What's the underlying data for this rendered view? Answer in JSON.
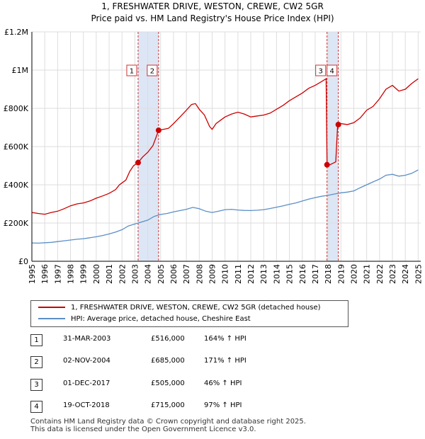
{
  "chart_data": {
    "type": "line",
    "title_line1": "1, FRESHWATER DRIVE, WESTON, CREWE, CW2 5GR",
    "title_line2": "Price paid vs. HM Land Registry's House Price Index (HPI)",
    "xlim": [
      1995,
      2025.2
    ],
    "ylim": [
      0,
      1200000
    ],
    "y_ticks": [
      {
        "value": 0,
        "label": "£0"
      },
      {
        "value": 200000,
        "label": "£200K"
      },
      {
        "value": 400000,
        "label": "£400K"
      },
      {
        "value": 600000,
        "label": "£600K"
      },
      {
        "value": 800000,
        "label": "£800K"
      },
      {
        "value": 1000000,
        "label": "£1M"
      },
      {
        "value": 1200000,
        "label": "£1.2M"
      }
    ],
    "x_ticks": [
      "1995",
      "1996",
      "1997",
      "1998",
      "1999",
      "2000",
      "2001",
      "2002",
      "2003",
      "2004",
      "2005",
      "2006",
      "2007",
      "2008",
      "2009",
      "2010",
      "2011",
      "2012",
      "2013",
      "2014",
      "2015",
      "2016",
      "2017",
      "2018",
      "2019",
      "2020",
      "2021",
      "2022",
      "2023",
      "2024",
      "2025"
    ],
    "series": [
      {
        "name": "1, FRESHWATER DRIVE, WESTON, CREWE, CW2 5GR (detached house)",
        "color": "#cc0000",
        "points": [
          [
            1995,
            255000
          ],
          [
            1995.5,
            250000
          ],
          [
            1996,
            246000
          ],
          [
            1996.5,
            255000
          ],
          [
            1997,
            262000
          ],
          [
            1997.5,
            275000
          ],
          [
            1998,
            290000
          ],
          [
            1998.5,
            300000
          ],
          [
            1999,
            305000
          ],
          [
            1999.5,
            315000
          ],
          [
            2000,
            330000
          ],
          [
            2000.5,
            342000
          ],
          [
            2001,
            355000
          ],
          [
            2001.5,
            375000
          ],
          [
            2001.8,
            400000
          ],
          [
            2002,
            410000
          ],
          [
            2002.3,
            425000
          ],
          [
            2002.6,
            470000
          ],
          [
            2002.9,
            500000
          ],
          [
            2003.25,
            516000
          ],
          [
            2003.6,
            545000
          ],
          [
            2004,
            570000
          ],
          [
            2004.4,
            605000
          ],
          [
            2004.84,
            685000
          ],
          [
            2005.2,
            690000
          ],
          [
            2005.6,
            695000
          ],
          [
            2006,
            720000
          ],
          [
            2006.5,
            755000
          ],
          [
            2007,
            790000
          ],
          [
            2007.4,
            820000
          ],
          [
            2007.7,
            825000
          ],
          [
            2008,
            795000
          ],
          [
            2008.4,
            765000
          ],
          [
            2008.8,
            705000
          ],
          [
            2009,
            690000
          ],
          [
            2009.3,
            720000
          ],
          [
            2009.7,
            740000
          ],
          [
            2010,
            755000
          ],
          [
            2010.5,
            770000
          ],
          [
            2011,
            780000
          ],
          [
            2011.5,
            770000
          ],
          [
            2012,
            755000
          ],
          [
            2012.5,
            760000
          ],
          [
            2013,
            765000
          ],
          [
            2013.5,
            775000
          ],
          [
            2014,
            795000
          ],
          [
            2014.5,
            815000
          ],
          [
            2015,
            840000
          ],
          [
            2015.5,
            860000
          ],
          [
            2016,
            880000
          ],
          [
            2016.5,
            905000
          ],
          [
            2017,
            920000
          ],
          [
            2017.5,
            940000
          ],
          [
            2017.85,
            955000
          ],
          [
            2017.92,
            505000
          ],
          [
            2018.0,
            500000
          ],
          [
            2018.3,
            510000
          ],
          [
            2018.6,
            520000
          ],
          [
            2018.75,
            715000
          ],
          [
            2019,
            720000
          ],
          [
            2019.5,
            715000
          ],
          [
            2020,
            725000
          ],
          [
            2020.5,
            750000
          ],
          [
            2021,
            790000
          ],
          [
            2021.5,
            810000
          ],
          [
            2022,
            850000
          ],
          [
            2022.5,
            900000
          ],
          [
            2023,
            920000
          ],
          [
            2023.5,
            890000
          ],
          [
            2024,
            900000
          ],
          [
            2024.5,
            930000
          ],
          [
            2025,
            955000
          ]
        ]
      },
      {
        "name": "HPI: Average price, detached house, Cheshire East",
        "color": "#5b8fc7",
        "points": [
          [
            1995,
            96000
          ],
          [
            1995.5,
            95000
          ],
          [
            1996,
            97000
          ],
          [
            1996.5,
            99000
          ],
          [
            1997,
            103000
          ],
          [
            1997.5,
            107000
          ],
          [
            1998,
            111000
          ],
          [
            1998.5,
            115000
          ],
          [
            1999,
            118000
          ],
          [
            1999.5,
            123000
          ],
          [
            2000,
            128000
          ],
          [
            2000.5,
            135000
          ],
          [
            2001,
            143000
          ],
          [
            2001.5,
            153000
          ],
          [
            2002,
            165000
          ],
          [
            2002.5,
            185000
          ],
          [
            2003,
            195000
          ],
          [
            2003.5,
            205000
          ],
          [
            2004,
            215000
          ],
          [
            2004.5,
            235000
          ],
          [
            2005,
            245000
          ],
          [
            2005.5,
            250000
          ],
          [
            2006,
            258000
          ],
          [
            2006.5,
            265000
          ],
          [
            2007,
            272000
          ],
          [
            2007.5,
            282000
          ],
          [
            2008,
            275000
          ],
          [
            2008.5,
            262000
          ],
          [
            2009,
            255000
          ],
          [
            2009.5,
            262000
          ],
          [
            2010,
            270000
          ],
          [
            2010.5,
            272000
          ],
          [
            2011,
            268000
          ],
          [
            2011.5,
            266000
          ],
          [
            2012,
            265000
          ],
          [
            2012.5,
            267000
          ],
          [
            2013,
            270000
          ],
          [
            2013.5,
            276000
          ],
          [
            2014,
            283000
          ],
          [
            2014.5,
            290000
          ],
          [
            2015,
            298000
          ],
          [
            2015.5,
            305000
          ],
          [
            2016,
            315000
          ],
          [
            2016.5,
            325000
          ],
          [
            2017,
            333000
          ],
          [
            2017.5,
            340000
          ],
          [
            2018,
            345000
          ],
          [
            2018.5,
            352000
          ],
          [
            2019,
            358000
          ],
          [
            2019.5,
            362000
          ],
          [
            2020,
            368000
          ],
          [
            2020.5,
            385000
          ],
          [
            2021,
            400000
          ],
          [
            2021.5,
            415000
          ],
          [
            2022,
            430000
          ],
          [
            2022.5,
            450000
          ],
          [
            2023,
            455000
          ],
          [
            2023.5,
            445000
          ],
          [
            2024,
            450000
          ],
          [
            2024.5,
            460000
          ],
          [
            2025,
            478000
          ]
        ]
      }
    ],
    "sales": [
      {
        "num": "1",
        "x": 2003.25,
        "y": 516000
      },
      {
        "num": "2",
        "x": 2004.84,
        "y": 685000
      },
      {
        "num": "3",
        "x": 2017.92,
        "y": 505000
      },
      {
        "num": "4",
        "x": 2018.8,
        "y": 715000
      }
    ],
    "shaded_ranges": [
      [
        2003.25,
        2004.84
      ],
      [
        2017.92,
        2018.8
      ]
    ]
  },
  "legend": {
    "property_label": "1, FRESHWATER DRIVE, WESTON, CREWE, CW2 5GR (detached house)",
    "hpi_label": "HPI: Average price, detached house, Cheshire East",
    "property_color": "#cc0000",
    "hpi_color": "#5b8fc7"
  },
  "sales_table": [
    {
      "num": "1",
      "date": "31-MAR-2003",
      "price": "£516,000",
      "hpi": "164% ↑ HPI"
    },
    {
      "num": "2",
      "date": "02-NOV-2004",
      "price": "£685,000",
      "hpi": "171% ↑ HPI"
    },
    {
      "num": "3",
      "date": "01-DEC-2017",
      "price": "£505,000",
      "hpi": "46% ↑ HPI"
    },
    {
      "num": "4",
      "date": "19-OCT-2018",
      "price": "£715,000",
      "hpi": "97% ↑ HPI"
    }
  ],
  "footer": {
    "line1": "Contains HM Land Registry data © Crown copyright and database right 2025.",
    "line2": "This data is licensed under the Open Government Licence v3.0."
  }
}
